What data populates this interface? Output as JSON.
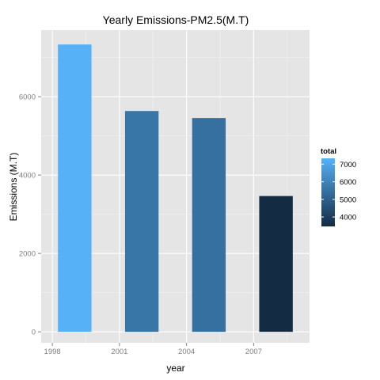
{
  "chart_data": {
    "type": "bar",
    "title": "Yearly Emissions-PM2.5(M.T)",
    "xlabel": "year",
    "ylabel": "Emissions (M.T)",
    "x": [
      1999,
      2002,
      2005,
      2008
    ],
    "values": [
      7332,
      5635,
      5455,
      3465
    ],
    "xlim": [
      1997.5,
      2009.5
    ],
    "ylim": [
      -280,
      7700
    ],
    "x_ticks": [
      1998,
      2001,
      2004,
      2007
    ],
    "y_ticks": [
      0,
      2000,
      4000,
      6000
    ],
    "grid": true,
    "legend": {
      "title": "total",
      "placement": "right",
      "ticks": [
        7000,
        6000,
        5000,
        4000
      ],
      "range": [
        3465,
        7332
      ],
      "color_low": "#132b43",
      "color_high": "#56b1f7"
    },
    "colors": {
      "panel": "#e5e5e5",
      "grid_major": "#ffffff",
      "grid_minor": "#f2f2f2"
    }
  }
}
